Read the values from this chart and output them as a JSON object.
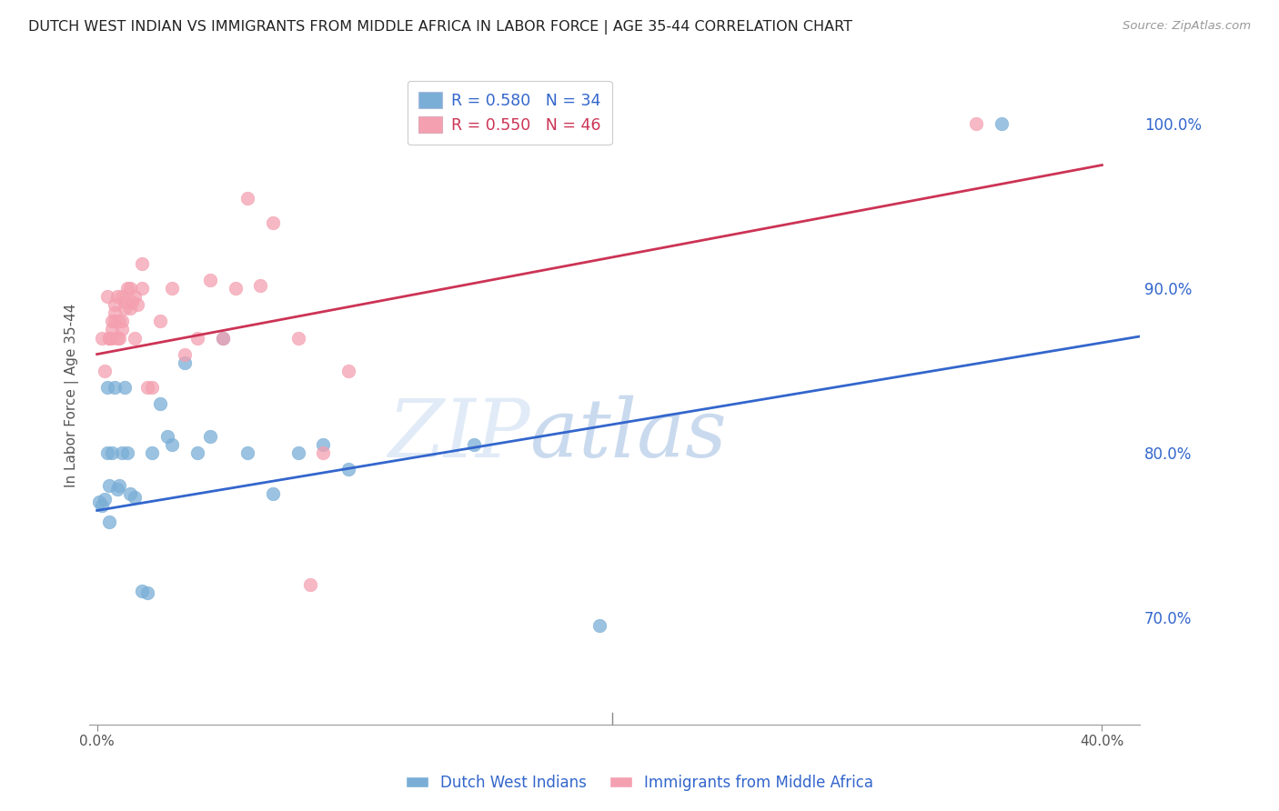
{
  "title": "DUTCH WEST INDIAN VS IMMIGRANTS FROM MIDDLE AFRICA IN LABOR FORCE | AGE 35-44 CORRELATION CHART",
  "source": "Source: ZipAtlas.com",
  "ylabel": "In Labor Force | Age 35-44",
  "xlim": [
    -0.003,
    0.415
  ],
  "ylim": [
    0.635,
    1.035
  ],
  "blue_r": 0.58,
  "blue_n": 34,
  "pink_r": 0.55,
  "pink_n": 46,
  "blue_color": "#7aaed6",
  "pink_color": "#f4a0b0",
  "line_blue": "#3366cc",
  "line_pink": "#cc3355",
  "right_axis_color": "#3366cc",
  "right_yticks": [
    0.7,
    0.8,
    0.9,
    1.0
  ],
  "right_yticklabels": [
    "70.0%",
    "80.0%",
    "90.0%",
    "100.0%"
  ],
  "watermark_zip": "ZIP",
  "watermark_atlas": "atlas",
  "grid_color": "#dddddd",
  "background_color": "#ffffff",
  "blue_x": [
    0.001,
    0.002,
    0.003,
    0.004,
    0.004,
    0.005,
    0.005,
    0.006,
    0.007,
    0.008,
    0.009,
    0.01,
    0.011,
    0.012,
    0.013,
    0.015,
    0.018,
    0.02,
    0.022,
    0.025,
    0.028,
    0.03,
    0.035,
    0.04,
    0.045,
    0.05,
    0.06,
    0.07,
    0.08,
    0.09,
    0.1,
    0.15,
    0.2,
    0.36
  ],
  "blue_y": [
    0.77,
    0.768,
    0.772,
    0.8,
    0.84,
    0.78,
    0.758,
    0.8,
    0.84,
    0.778,
    0.78,
    0.8,
    0.84,
    0.8,
    0.775,
    0.773,
    0.716,
    0.715,
    0.8,
    0.83,
    0.81,
    0.805,
    0.855,
    0.8,
    0.81,
    0.87,
    0.8,
    0.775,
    0.8,
    0.805,
    0.79,
    0.805,
    0.695,
    1.0
  ],
  "pink_x": [
    0.002,
    0.003,
    0.004,
    0.005,
    0.005,
    0.006,
    0.006,
    0.006,
    0.007,
    0.007,
    0.007,
    0.008,
    0.008,
    0.009,
    0.009,
    0.01,
    0.01,
    0.01,
    0.011,
    0.011,
    0.012,
    0.013,
    0.013,
    0.014,
    0.015,
    0.015,
    0.016,
    0.018,
    0.018,
    0.02,
    0.022,
    0.025,
    0.03,
    0.035,
    0.04,
    0.045,
    0.05,
    0.055,
    0.06,
    0.065,
    0.07,
    0.08,
    0.085,
    0.09,
    0.1,
    0.35
  ],
  "pink_y": [
    0.87,
    0.85,
    0.895,
    0.87,
    0.87,
    0.87,
    0.875,
    0.88,
    0.88,
    0.885,
    0.89,
    0.87,
    0.895,
    0.88,
    0.87,
    0.895,
    0.88,
    0.875,
    0.892,
    0.888,
    0.9,
    0.9,
    0.888,
    0.892,
    0.895,
    0.87,
    0.89,
    0.9,
    0.915,
    0.84,
    0.84,
    0.88,
    0.9,
    0.86,
    0.87,
    0.905,
    0.87,
    0.9,
    0.955,
    0.902,
    0.94,
    0.87,
    0.72,
    0.8,
    0.85,
    1.0
  ],
  "blue_line": [
    0.0,
    1.0,
    0.765,
    1.02
  ],
  "pink_line": [
    0.0,
    0.4,
    0.86,
    0.975
  ]
}
